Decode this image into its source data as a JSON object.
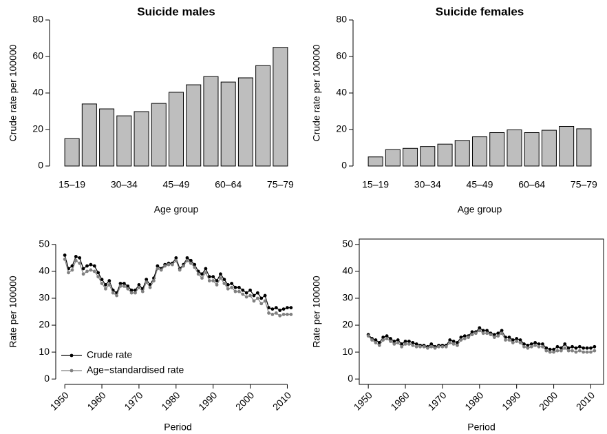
{
  "chart_data": [
    {
      "type": "bar",
      "title": "Suicide males",
      "x_label": "Age group",
      "y_label": "Crude rate per 100000",
      "categories": [
        "15–19",
        null,
        null,
        "30–34",
        null,
        null,
        "45–49",
        null,
        null,
        "60–64",
        null,
        null,
        "75–79"
      ],
      "values": [
        15,
        34,
        31.3,
        27.5,
        29.8,
        34.3,
        40.4,
        44.5,
        49,
        46,
        48.3,
        55,
        65
      ],
      "color": "#bebebe",
      "ylim": [
        0,
        80
      ],
      "yticks": [
        0,
        20,
        40,
        60,
        80
      ]
    },
    {
      "type": "bar",
      "title": "Suicide females",
      "x_label": "Age group",
      "y_label": "Crude rate per 100000",
      "categories": [
        "15–19",
        null,
        null,
        "30–34",
        null,
        null,
        "45–49",
        null,
        null,
        "60–64",
        null,
        null,
        "75–79"
      ],
      "values": [
        5,
        9,
        9.7,
        10.7,
        12,
        14,
        16,
        18.3,
        19.8,
        18.3,
        19.6,
        21.7,
        20.4
      ],
      "color": "#bebebe",
      "ylim": [
        0,
        80
      ],
      "yticks": [
        0,
        20,
        40,
        60,
        80
      ]
    },
    {
      "type": "line",
      "x_label": "Period",
      "y_label": "Rate per 100000",
      "box": false,
      "legend": "bottomleft",
      "x": [
        1950,
        1951,
        1952,
        1953,
        1954,
        1955,
        1956,
        1957,
        1958,
        1959,
        1960,
        1961,
        1962,
        1963,
        1964,
        1965,
        1966,
        1967,
        1968,
        1969,
        1970,
        1971,
        1972,
        1973,
        1974,
        1975,
        1976,
        1977,
        1978,
        1979,
        1980,
        1981,
        1982,
        1983,
        1984,
        1985,
        1986,
        1987,
        1988,
        1989,
        1990,
        1991,
        1992,
        1993,
        1994,
        1995,
        1996,
        1997,
        1998,
        1999,
        2000,
        2001,
        2002,
        2003,
        2004,
        2005,
        2006,
        2007,
        2008,
        2009,
        2010,
        2011
      ],
      "xlim": [
        1947.56,
        2013.44
      ],
      "xticks": [
        1950,
        1960,
        1970,
        1980,
        1990,
        2000,
        2010
      ],
      "ylim": [
        -2,
        52
      ],
      "yticks": [
        0,
        10,
        20,
        30,
        40,
        50
      ],
      "series": [
        {
          "name": "Crude rate",
          "color": "#000000",
          "values": [
            46,
            41,
            42,
            45.5,
            45,
            41,
            42,
            42.5,
            42,
            39.5,
            37,
            35,
            36.5,
            33,
            32,
            35.5,
            35.5,
            34.5,
            33,
            33,
            35,
            33.5,
            37,
            35,
            37.5,
            42,
            41,
            42.5,
            43,
            43,
            45,
            41,
            42.5,
            45,
            44,
            42.5,
            40,
            39,
            41,
            38,
            38,
            36.5,
            39,
            37,
            35,
            35.5,
            34,
            34,
            33,
            32,
            33,
            31,
            32,
            30,
            31,
            26.5,
            26,
            26.5,
            25.5,
            26,
            26.5,
            26.5
          ]
        },
        {
          "name": "Age−standardised rate",
          "color": "#808080",
          "values": [
            44.5,
            39.5,
            40.5,
            44,
            43,
            39,
            40,
            40.5,
            40,
            38,
            35.5,
            33.5,
            35,
            32,
            31,
            34.5,
            34.5,
            33.5,
            32,
            32,
            34,
            32.5,
            36,
            34,
            36.5,
            41,
            40.5,
            42,
            42.5,
            42.5,
            44,
            40.5,
            42,
            44,
            43,
            41.5,
            39,
            37.5,
            39.5,
            36.5,
            36.5,
            35,
            37.5,
            35.5,
            33.5,
            34,
            32.5,
            32.5,
            31.5,
            30.5,
            31,
            29,
            30,
            28,
            29,
            24.5,
            24,
            24.5,
            23.5,
            24,
            24,
            24
          ]
        }
      ]
    },
    {
      "type": "line",
      "x_label": "Period",
      "y_label": "Rate per 100000",
      "box": true,
      "x": [
        1950,
        1951,
        1952,
        1953,
        1954,
        1955,
        1956,
        1957,
        1958,
        1959,
        1960,
        1961,
        1962,
        1963,
        1964,
        1965,
        1966,
        1967,
        1968,
        1969,
        1970,
        1971,
        1972,
        1973,
        1974,
        1975,
        1976,
        1977,
        1978,
        1979,
        1980,
        1981,
        1982,
        1983,
        1984,
        1985,
        1986,
        1987,
        1988,
        1989,
        1990,
        1991,
        1992,
        1993,
        1994,
        1995,
        1996,
        1997,
        1998,
        1999,
        2000,
        2001,
        2002,
        2003,
        2004,
        2005,
        2006,
        2007,
        2008,
        2009,
        2010,
        2011
      ],
      "xlim": [
        1947.56,
        2013.44
      ],
      "xticks": [
        1950,
        1960,
        1970,
        1980,
        1990,
        2000,
        2010
      ],
      "ylim": [
        -2,
        52
      ],
      "yticks": [
        0,
        10,
        20,
        30,
        40,
        50
      ],
      "series": [
        {
          "color": "#000000",
          "values": [
            16.5,
            15,
            14.5,
            13.5,
            15.5,
            16,
            15,
            14,
            14.5,
            13,
            14,
            14,
            13.5,
            13,
            12.5,
            12.5,
            12,
            13,
            12,
            12.5,
            12.5,
            12.5,
            14.5,
            14,
            13.5,
            15.5,
            16,
            16,
            17.5,
            17.5,
            19,
            18,
            18,
            17,
            16.5,
            17,
            18,
            15.5,
            15.5,
            14.5,
            15,
            14.5,
            13,
            12.5,
            13,
            13.5,
            13,
            13,
            11.5,
            11,
            11,
            12,
            11.5,
            13,
            11.5,
            12,
            11.5,
            12,
            11.5,
            11.5,
            11.5,
            12
          ]
        },
        {
          "color": "#808080",
          "values": [
            16,
            14.5,
            13.5,
            12.5,
            14.5,
            15,
            14,
            13,
            13.5,
            12,
            13,
            13,
            12.5,
            12,
            12,
            12,
            11.5,
            12,
            11.5,
            12,
            12,
            12,
            13.5,
            13,
            12.5,
            14.5,
            15,
            15.5,
            16.5,
            17,
            18,
            17,
            17,
            16.5,
            15.5,
            16,
            17,
            14.5,
            14.5,
            13.5,
            14,
            13.5,
            12,
            11.5,
            12,
            12.5,
            12,
            12,
            10.5,
            10,
            10,
            10.5,
            10.5,
            11.5,
            10.5,
            10.5,
            10,
            10.5,
            10,
            10,
            10,
            10.5
          ]
        }
      ]
    }
  ]
}
